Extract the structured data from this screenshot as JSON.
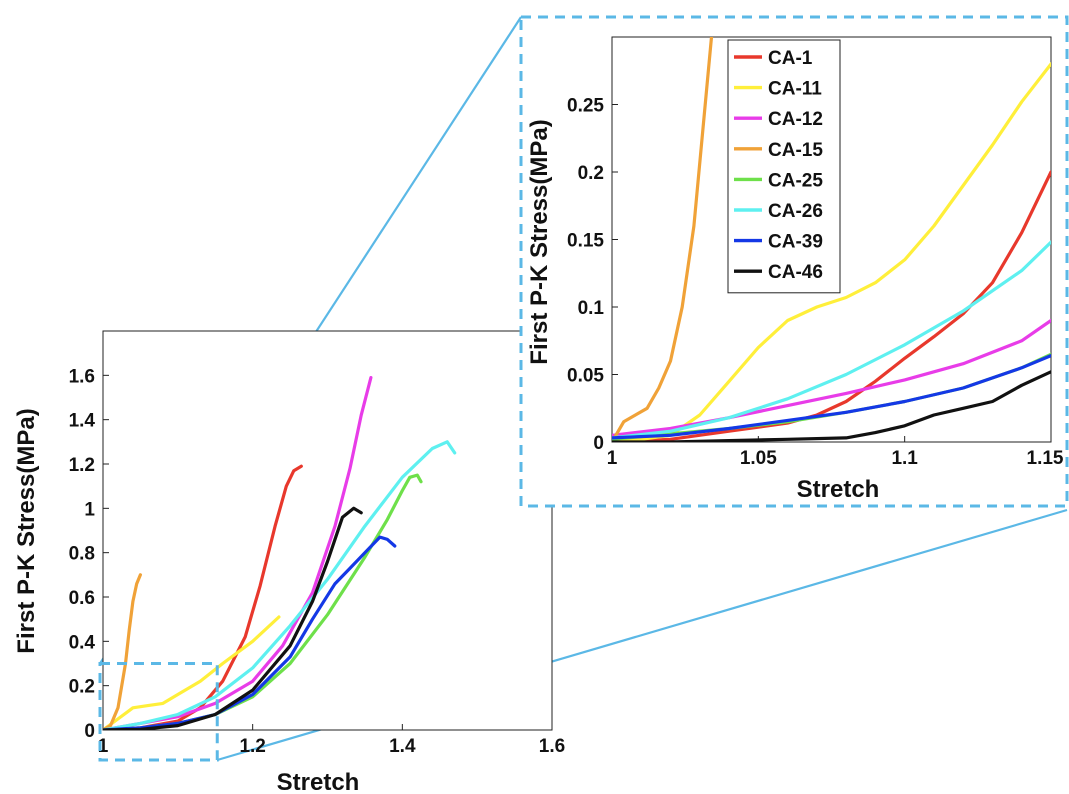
{
  "colors": {
    "connector": "#5bb8e6",
    "CA-1": "#e8382c",
    "CA-11": "#ffef3a",
    "CA-12": "#e83ce8",
    "CA-15": "#f0a238",
    "CA-25": "#6ee04a",
    "CA-26": "#5ef0f0",
    "CA-39": "#1438e6",
    "CA-46": "#111111"
  },
  "chart_data": [
    {
      "type": "line",
      "title": "",
      "xlabel": "Stretch",
      "ylabel": "First P-K Stress(MPa)",
      "xlim": [
        1,
        1.6
      ],
      "ylim": [
        0,
        1.8
      ],
      "xticks": [
        "1",
        "1.2",
        "1.4",
        "1.6"
      ],
      "yticks": [
        "0",
        "0.2",
        "0.4",
        "0.6",
        "0.8",
        "1",
        "1.2",
        "1.4",
        "1.6"
      ],
      "grid": false,
      "series": [
        {
          "name": "CA-1",
          "x": [
            1.0,
            1.05,
            1.1,
            1.13,
            1.16,
            1.19,
            1.21,
            1.23,
            1.245,
            1.255,
            1.265
          ],
          "y": [
            0.0,
            0.01,
            0.04,
            0.1,
            0.22,
            0.42,
            0.65,
            0.92,
            1.1,
            1.17,
            1.19
          ]
        },
        {
          "name": "CA-11",
          "x": [
            1.0,
            1.02,
            1.04,
            1.06,
            1.08,
            1.1,
            1.13,
            1.16,
            1.2,
            1.235
          ],
          "y": [
            0.0,
            0.05,
            0.1,
            0.11,
            0.12,
            0.16,
            0.22,
            0.3,
            0.4,
            0.51
          ]
        },
        {
          "name": "CA-12",
          "x": [
            1.0,
            1.05,
            1.1,
            1.15,
            1.2,
            1.24,
            1.28,
            1.31,
            1.33,
            1.345,
            1.358
          ],
          "y": [
            0.0,
            0.03,
            0.06,
            0.12,
            0.22,
            0.38,
            0.62,
            0.92,
            1.18,
            1.42,
            1.59
          ]
        },
        {
          "name": "CA-15",
          "x": [
            1.0,
            1.01,
            1.02,
            1.03,
            1.035,
            1.04,
            1.045,
            1.05
          ],
          "y": [
            0.0,
            0.02,
            0.1,
            0.3,
            0.45,
            0.58,
            0.66,
            0.7
          ]
        },
        {
          "name": "CA-25",
          "x": [
            1.0,
            1.05,
            1.1,
            1.15,
            1.2,
            1.25,
            1.3,
            1.35,
            1.38,
            1.4,
            1.41,
            1.42,
            1.425
          ],
          "y": [
            0.0,
            0.01,
            0.03,
            0.07,
            0.15,
            0.3,
            0.52,
            0.78,
            0.95,
            1.08,
            1.14,
            1.15,
            1.12
          ]
        },
        {
          "name": "CA-26",
          "x": [
            1.0,
            1.05,
            1.1,
            1.15,
            1.2,
            1.25,
            1.3,
            1.35,
            1.4,
            1.44,
            1.46,
            1.47
          ],
          "y": [
            0.0,
            0.03,
            0.07,
            0.15,
            0.28,
            0.47,
            0.68,
            0.92,
            1.14,
            1.27,
            1.3,
            1.25
          ]
        },
        {
          "name": "CA-39",
          "x": [
            1.0,
            1.05,
            1.1,
            1.15,
            1.2,
            1.25,
            1.28,
            1.31,
            1.33,
            1.35,
            1.37,
            1.38,
            1.39
          ],
          "y": [
            0.0,
            0.01,
            0.03,
            0.07,
            0.16,
            0.33,
            0.5,
            0.66,
            0.73,
            0.8,
            0.87,
            0.86,
            0.83
          ]
        },
        {
          "name": "CA-46",
          "x": [
            1.0,
            1.05,
            1.1,
            1.15,
            1.2,
            1.25,
            1.28,
            1.3,
            1.32,
            1.335,
            1.345
          ],
          "y": [
            0.0,
            0.003,
            0.02,
            0.07,
            0.18,
            0.38,
            0.58,
            0.76,
            0.96,
            1.0,
            0.98
          ]
        }
      ]
    },
    {
      "type": "line",
      "title": "",
      "xlabel": "Stretch",
      "ylabel": "First P-K Stress(MPa)",
      "xlim": [
        1,
        1.15
      ],
      "ylim": [
        0,
        0.3
      ],
      "xticks": [
        "1",
        "1.05",
        "1.1",
        "1.15"
      ],
      "yticks": [
        "0",
        "0.05",
        "0.1",
        "0.15",
        "0.2",
        "0.25"
      ],
      "grid": false,
      "legend_position": "top-left",
      "legend": [
        "CA-1",
        "CA-11",
        "CA-12",
        "CA-15",
        "CA-25",
        "CA-26",
        "CA-39",
        "CA-46"
      ],
      "series": [
        {
          "name": "CA-1",
          "x": [
            1.0,
            1.02,
            1.04,
            1.06,
            1.07,
            1.08,
            1.09,
            1.1,
            1.11,
            1.12,
            1.13,
            1.14,
            1.15
          ],
          "y": [
            0.0,
            0.002,
            0.008,
            0.014,
            0.02,
            0.03,
            0.045,
            0.062,
            0.078,
            0.095,
            0.118,
            0.155,
            0.2
          ]
        },
        {
          "name": "CA-11",
          "x": [
            1.0,
            1.01,
            1.02,
            1.03,
            1.04,
            1.05,
            1.06,
            1.07,
            1.08,
            1.09,
            1.1,
            1.11,
            1.12,
            1.13,
            1.14,
            1.15
          ],
          "y": [
            0.0,
            0.002,
            0.005,
            0.02,
            0.045,
            0.07,
            0.09,
            0.1,
            0.107,
            0.118,
            0.135,
            0.16,
            0.19,
            0.22,
            0.252,
            0.28
          ]
        },
        {
          "name": "CA-12",
          "x": [
            1.0,
            1.02,
            1.04,
            1.06,
            1.08,
            1.1,
            1.12,
            1.14,
            1.15
          ],
          "y": [
            0.005,
            0.01,
            0.018,
            0.027,
            0.036,
            0.046,
            0.058,
            0.075,
            0.09
          ]
        },
        {
          "name": "CA-15",
          "x": [
            1.0,
            1.004,
            1.008,
            1.012,
            1.016,
            1.02,
            1.024,
            1.028,
            1.031,
            1.034
          ],
          "y": [
            0.0,
            0.015,
            0.02,
            0.025,
            0.04,
            0.06,
            0.1,
            0.16,
            0.23,
            0.3
          ]
        },
        {
          "name": "CA-25",
          "x": [
            1.0,
            1.02,
            1.04,
            1.06,
            1.08,
            1.1,
            1.12,
            1.14,
            1.15
          ],
          "y": [
            0.002,
            0.006,
            0.01,
            0.015,
            0.022,
            0.03,
            0.04,
            0.055,
            0.065
          ]
        },
        {
          "name": "CA-26",
          "x": [
            1.0,
            1.02,
            1.04,
            1.06,
            1.08,
            1.1,
            1.12,
            1.14,
            1.15
          ],
          "y": [
            0.003,
            0.008,
            0.018,
            0.032,
            0.05,
            0.072,
            0.097,
            0.127,
            0.148
          ]
        },
        {
          "name": "CA-39",
          "x": [
            1.0,
            1.02,
            1.04,
            1.06,
            1.08,
            1.1,
            1.12,
            1.14,
            1.15
          ],
          "y": [
            0.003,
            0.005,
            0.01,
            0.016,
            0.022,
            0.03,
            0.04,
            0.055,
            0.064
          ]
        },
        {
          "name": "CA-46",
          "x": [
            1.0,
            1.02,
            1.04,
            1.06,
            1.08,
            1.09,
            1.1,
            1.11,
            1.12,
            1.13,
            1.14,
            1.15
          ],
          "y": [
            0.0,
            0.0,
            0.001,
            0.002,
            0.003,
            0.007,
            0.012,
            0.02,
            0.025,
            0.03,
            0.042,
            0.052
          ]
        }
      ]
    }
  ]
}
